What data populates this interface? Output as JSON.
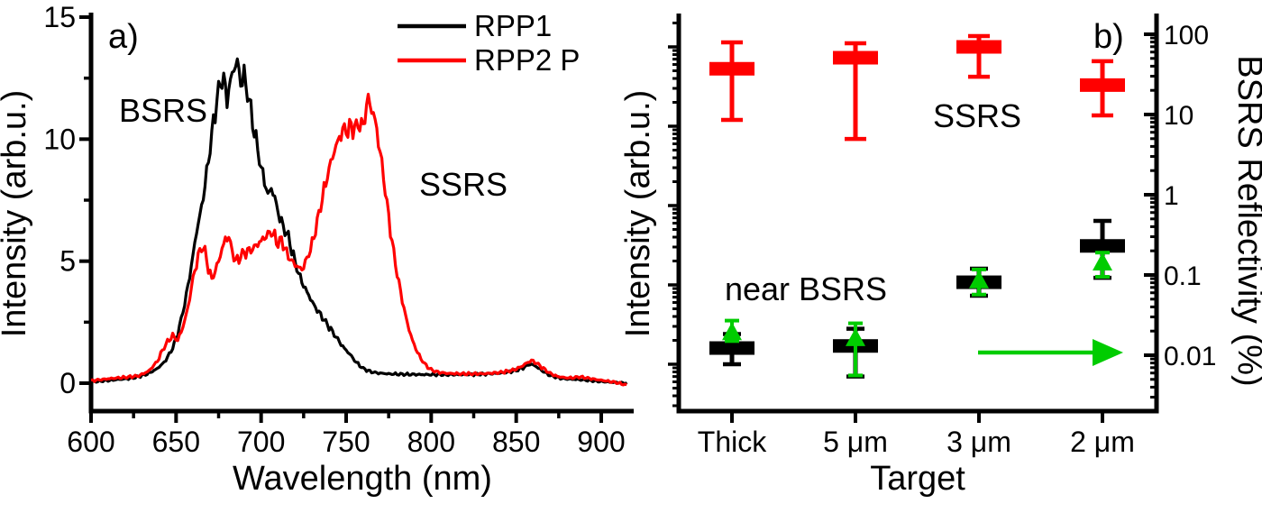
{
  "figure": {
    "panel_a": {
      "label": "a)",
      "bsrs_label": "BSRS",
      "ssrs_label": "SSRS",
      "x_axis": {
        "title": "Wavelength (nm)"
      },
      "y_axis": {
        "title": "Intensity (arb.u.)"
      },
      "legend": [
        {
          "label": "RPP1",
          "color": "#000000"
        },
        {
          "label": "RPP2 P",
          "color": "#ff0000"
        }
      ]
    },
    "panel_b": {
      "label": "b)",
      "ssrs_label": "SSRS",
      "near_bsrs_label": "near BSRS",
      "x_axis": {
        "title": "Target"
      },
      "left_axis": {
        "title": "Intensity (arb.u.)"
      },
      "right_axis": {
        "title": "BSRS Reflectivity (%)"
      }
    }
  },
  "colors": {
    "rpp1": "#000000",
    "rpp2": "#ff0000",
    "ssrs_marker": "#ff0000",
    "near_bsrs_marker": "#000000",
    "reflectivity_marker": "#00cc00"
  },
  "chart_data": [
    {
      "type": "line",
      "panel": "a",
      "xlabel": "Wavelength (nm)",
      "ylabel": "Intensity (arb.u.)",
      "xlim": [
        600,
        915
      ],
      "ylim": [
        0,
        15
      ],
      "x_ticks": [
        600,
        650,
        700,
        750,
        800,
        850,
        900
      ],
      "x_minor_ticks": [
        625,
        675,
        725,
        775,
        825,
        875
      ],
      "y_ticks": [
        0,
        5,
        10,
        15
      ],
      "y_minor_ticks": [
        2.5,
        7.5,
        12.5
      ],
      "grid": false,
      "legend_position": "top-right",
      "annotations": [
        {
          "text": "BSRS",
          "x_nm": 642,
          "y": 11.0
        },
        {
          "text": "SSRS",
          "x_nm": 819,
          "y": 7.9
        }
      ],
      "series": [
        {
          "name": "RPP1",
          "color": "#000000",
          "points": [
            [
              600,
              0.05
            ],
            [
              608,
              0.1
            ],
            [
              616,
              0.15
            ],
            [
              624,
              0.2
            ],
            [
              632,
              0.35
            ],
            [
              638,
              0.55
            ],
            [
              643,
              0.85
            ],
            [
              647,
              1.3
            ],
            [
              650,
              1.8
            ],
            [
              653,
              2.6
            ],
            [
              656,
              3.6
            ],
            [
              659,
              4.8
            ],
            [
              662,
              6.2
            ],
            [
              665,
              7.2
            ],
            [
              668,
              8.6
            ],
            [
              671,
              10.2
            ],
            [
              674,
              11.6
            ],
            [
              676,
              12.3
            ],
            [
              678,
              12.5
            ],
            [
              680,
              11.6
            ],
            [
              682,
              12.4
            ],
            [
              684,
              12.9
            ],
            [
              686,
              13.2
            ],
            [
              688,
              12.3
            ],
            [
              690,
              12.6
            ],
            [
              692,
              11.9
            ],
            [
              694,
              11.2
            ],
            [
              696,
              10.3
            ],
            [
              698,
              9.6
            ],
            [
              700,
              8.8
            ],
            [
              702,
              8.3
            ],
            [
              704,
              7.7
            ],
            [
              706,
              8.0
            ],
            [
              708,
              7.6
            ],
            [
              710,
              7.0
            ],
            [
              713,
              6.4
            ],
            [
              716,
              6.0
            ],
            [
              719,
              5.2
            ],
            [
              722,
              4.5
            ],
            [
              725,
              4.0
            ],
            [
              728,
              3.6
            ],
            [
              731,
              3.2
            ],
            [
              734,
              2.9
            ],
            [
              737,
              2.6
            ],
            [
              740,
              2.3
            ],
            [
              744,
              1.9
            ],
            [
              748,
              1.5
            ],
            [
              752,
              1.2
            ],
            [
              756,
              0.85
            ],
            [
              760,
              0.6
            ],
            [
              764,
              0.48
            ],
            [
              768,
              0.42
            ],
            [
              775,
              0.38
            ],
            [
              785,
              0.36
            ],
            [
              800,
              0.35
            ],
            [
              815,
              0.35
            ],
            [
              830,
              0.37
            ],
            [
              842,
              0.42
            ],
            [
              850,
              0.52
            ],
            [
              855,
              0.66
            ],
            [
              858,
              0.78
            ],
            [
              861,
              0.72
            ],
            [
              865,
              0.52
            ],
            [
              869,
              0.35
            ],
            [
              873,
              0.25
            ],
            [
              878,
              0.18
            ],
            [
              884,
              0.16
            ],
            [
              890,
              0.13
            ],
            [
              898,
              0.08
            ],
            [
              906,
              0.04
            ],
            [
              915,
              0.0
            ]
          ]
        },
        {
          "name": "RPP2 P",
          "color": "#ff0000",
          "points": [
            [
              600,
              0.1
            ],
            [
              610,
              0.18
            ],
            [
              620,
              0.24
            ],
            [
              628,
              0.3
            ],
            [
              634,
              0.5
            ],
            [
              639,
              0.9
            ],
            [
              642,
              1.35
            ],
            [
              645,
              1.7
            ],
            [
              648,
              1.95
            ],
            [
              651,
              1.75
            ],
            [
              654,
              2.3
            ],
            [
              657,
              3.1
            ],
            [
              660,
              4.3
            ],
            [
              663,
              5.2
            ],
            [
              665,
              5.6
            ],
            [
              667,
              5.4
            ],
            [
              669,
              4.7
            ],
            [
              671,
              4.25
            ],
            [
              673,
              4.6
            ],
            [
              675,
              5.0
            ],
            [
              677,
              5.5
            ],
            [
              679,
              5.9
            ],
            [
              681,
              6.0
            ],
            [
              683,
              5.4
            ],
            [
              685,
              5.0
            ],
            [
              687,
              5.1
            ],
            [
              689,
              5.3
            ],
            [
              692,
              5.4
            ],
            [
              695,
              5.5
            ],
            [
              698,
              5.7
            ],
            [
              701,
              5.9
            ],
            [
              704,
              6.1
            ],
            [
              706,
              6.2
            ],
            [
              708,
              6.0
            ],
            [
              710,
              5.7
            ],
            [
              712,
              5.9
            ],
            [
              714,
              5.5
            ],
            [
              716,
              5.2
            ],
            [
              718,
              5.0
            ],
            [
              721,
              4.8
            ],
            [
              724,
              4.65
            ],
            [
              727,
              5.1
            ],
            [
              730,
              5.7
            ],
            [
              733,
              6.6
            ],
            [
              736,
              7.6
            ],
            [
              739,
              8.5
            ],
            [
              742,
              9.3
            ],
            [
              745,
              9.9
            ],
            [
              747,
              10.2
            ],
            [
              749,
              10.45
            ],
            [
              751,
              10.3
            ],
            [
              753,
              10.6
            ],
            [
              755,
              10.35
            ],
            [
              757,
              10.7
            ],
            [
              759,
              10.45
            ],
            [
              761,
              10.9
            ],
            [
              763,
              11.7
            ],
            [
              765,
              11.2
            ],
            [
              767,
              10.8
            ],
            [
              769,
              9.9
            ],
            [
              771,
              9.0
            ],
            [
              773,
              7.9
            ],
            [
              775,
              6.8
            ],
            [
              777,
              5.8
            ],
            [
              779,
              4.9
            ],
            [
              781,
              4.1
            ],
            [
              783,
              3.4
            ],
            [
              785,
              2.75
            ],
            [
              787,
              2.2
            ],
            [
              789,
              1.75
            ],
            [
              791,
              1.4
            ],
            [
              794,
              1.0
            ],
            [
              797,
              0.72
            ],
            [
              800,
              0.55
            ],
            [
              804,
              0.45
            ],
            [
              810,
              0.4
            ],
            [
              820,
              0.38
            ],
            [
              832,
              0.39
            ],
            [
              842,
              0.45
            ],
            [
              849,
              0.55
            ],
            [
              853,
              0.68
            ],
            [
              856,
              0.82
            ],
            [
              859,
              0.93
            ],
            [
              862,
              0.82
            ],
            [
              866,
              0.6
            ],
            [
              870,
              0.4
            ],
            [
              874,
              0.28
            ],
            [
              879,
              0.22
            ],
            [
              883,
              0.22
            ],
            [
              887,
              0.26
            ],
            [
              891,
              0.22
            ],
            [
              896,
              0.16
            ],
            [
              902,
              0.1
            ],
            [
              908,
              0.04
            ],
            [
              915,
              -0.08
            ]
          ]
        }
      ]
    },
    {
      "type": "errorbar",
      "panel": "b",
      "xlabel": "Target",
      "categories": [
        "Thick",
        "5 μm",
        "3 μm",
        "2 μm"
      ],
      "left_axis": {
        "label": "Intensity (arb.u.)",
        "scale": "log",
        "tick_labels_shown": false
      },
      "right_axis": {
        "label": "BSRS Reflectivity (%)",
        "scale": "log",
        "ticks": [
          100,
          10,
          1,
          0.1,
          0.01
        ],
        "tick_labels": [
          "100",
          "10",
          "1",
          "0.1",
          "0.01"
        ]
      },
      "green_arrow": "points to right axis at ~0.01 level",
      "series": [
        {
          "name": "SSRS",
          "axis": "left",
          "marker": "box",
          "color": "#ff0000",
          "units": "relative intensity (arb.u., log scale; 3 um value = 100)",
          "values": [
            53,
            73,
            100,
            33
          ],
          "err_hi": [
            114,
            111,
            137,
            66
          ],
          "err_lo": [
            12,
            6.9,
            42,
            13.7
          ]
        },
        {
          "name": "near BSRS",
          "axis": "left",
          "marker": "box",
          "color": "#000000",
          "units": "relative intensity (arb.u., log scale; SSRS 3 um value = 100)",
          "values": [
            0.016,
            0.017,
            0.108,
            0.31
          ],
          "err_hi": [
            0.024,
            0.028,
            0.16,
            0.64
          ],
          "err_lo": [
            0.01,
            0.007,
            0.073,
            0.123
          ]
        },
        {
          "name": "BSRS Reflectivity",
          "axis": "right",
          "marker": "triangle",
          "color": "#00cc00",
          "units": "%",
          "values": [
            0.019,
            0.016,
            0.084,
            0.14
          ],
          "err_hi": [
            0.027,
            0.025,
            0.117,
            0.19
          ],
          "err_lo": [
            0.015,
            0.0056,
            0.057,
            0.095
          ]
        }
      ]
    }
  ]
}
